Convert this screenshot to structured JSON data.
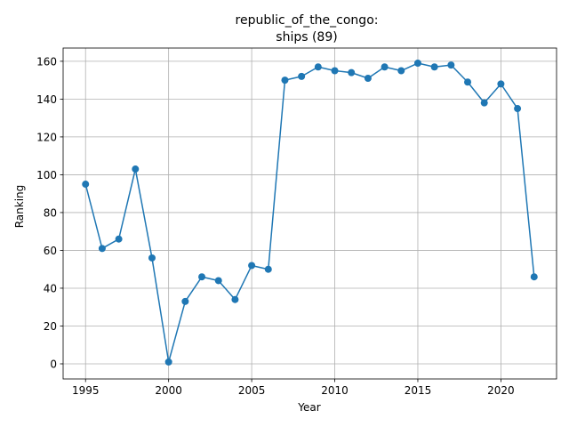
{
  "chart_data": {
    "type": "line",
    "title_line1": "republic_of_the_congo:",
    "title_line2": "ships (89)",
    "xlabel": "Year",
    "ylabel": "Ranking",
    "xlim": [
      1993.65,
      2023.35
    ],
    "ylim": [
      -8,
      167
    ],
    "x_ticks": [
      1995,
      2000,
      2005,
      2010,
      2015,
      2020
    ],
    "y_ticks": [
      0,
      20,
      40,
      60,
      80,
      100,
      120,
      140,
      160
    ],
    "grid": true,
    "color": "#1f77b4",
    "series": [
      {
        "x": [
          1995,
          1996,
          1997,
          1998,
          1999,
          2000,
          2001,
          2002,
          2003,
          2004,
          2005,
          2006,
          2007,
          2008,
          2009,
          2010,
          2011,
          2012,
          2013,
          2014,
          2015,
          2016,
          2017,
          2018,
          2019,
          2020,
          2021,
          2022
        ],
        "y": [
          95,
          61,
          66,
          103,
          56,
          1,
          33,
          46,
          44,
          34,
          52,
          50,
          150,
          152,
          157,
          155,
          154,
          151,
          157,
          155,
          159,
          157,
          158,
          149,
          138,
          148,
          135,
          46
        ]
      }
    ]
  }
}
